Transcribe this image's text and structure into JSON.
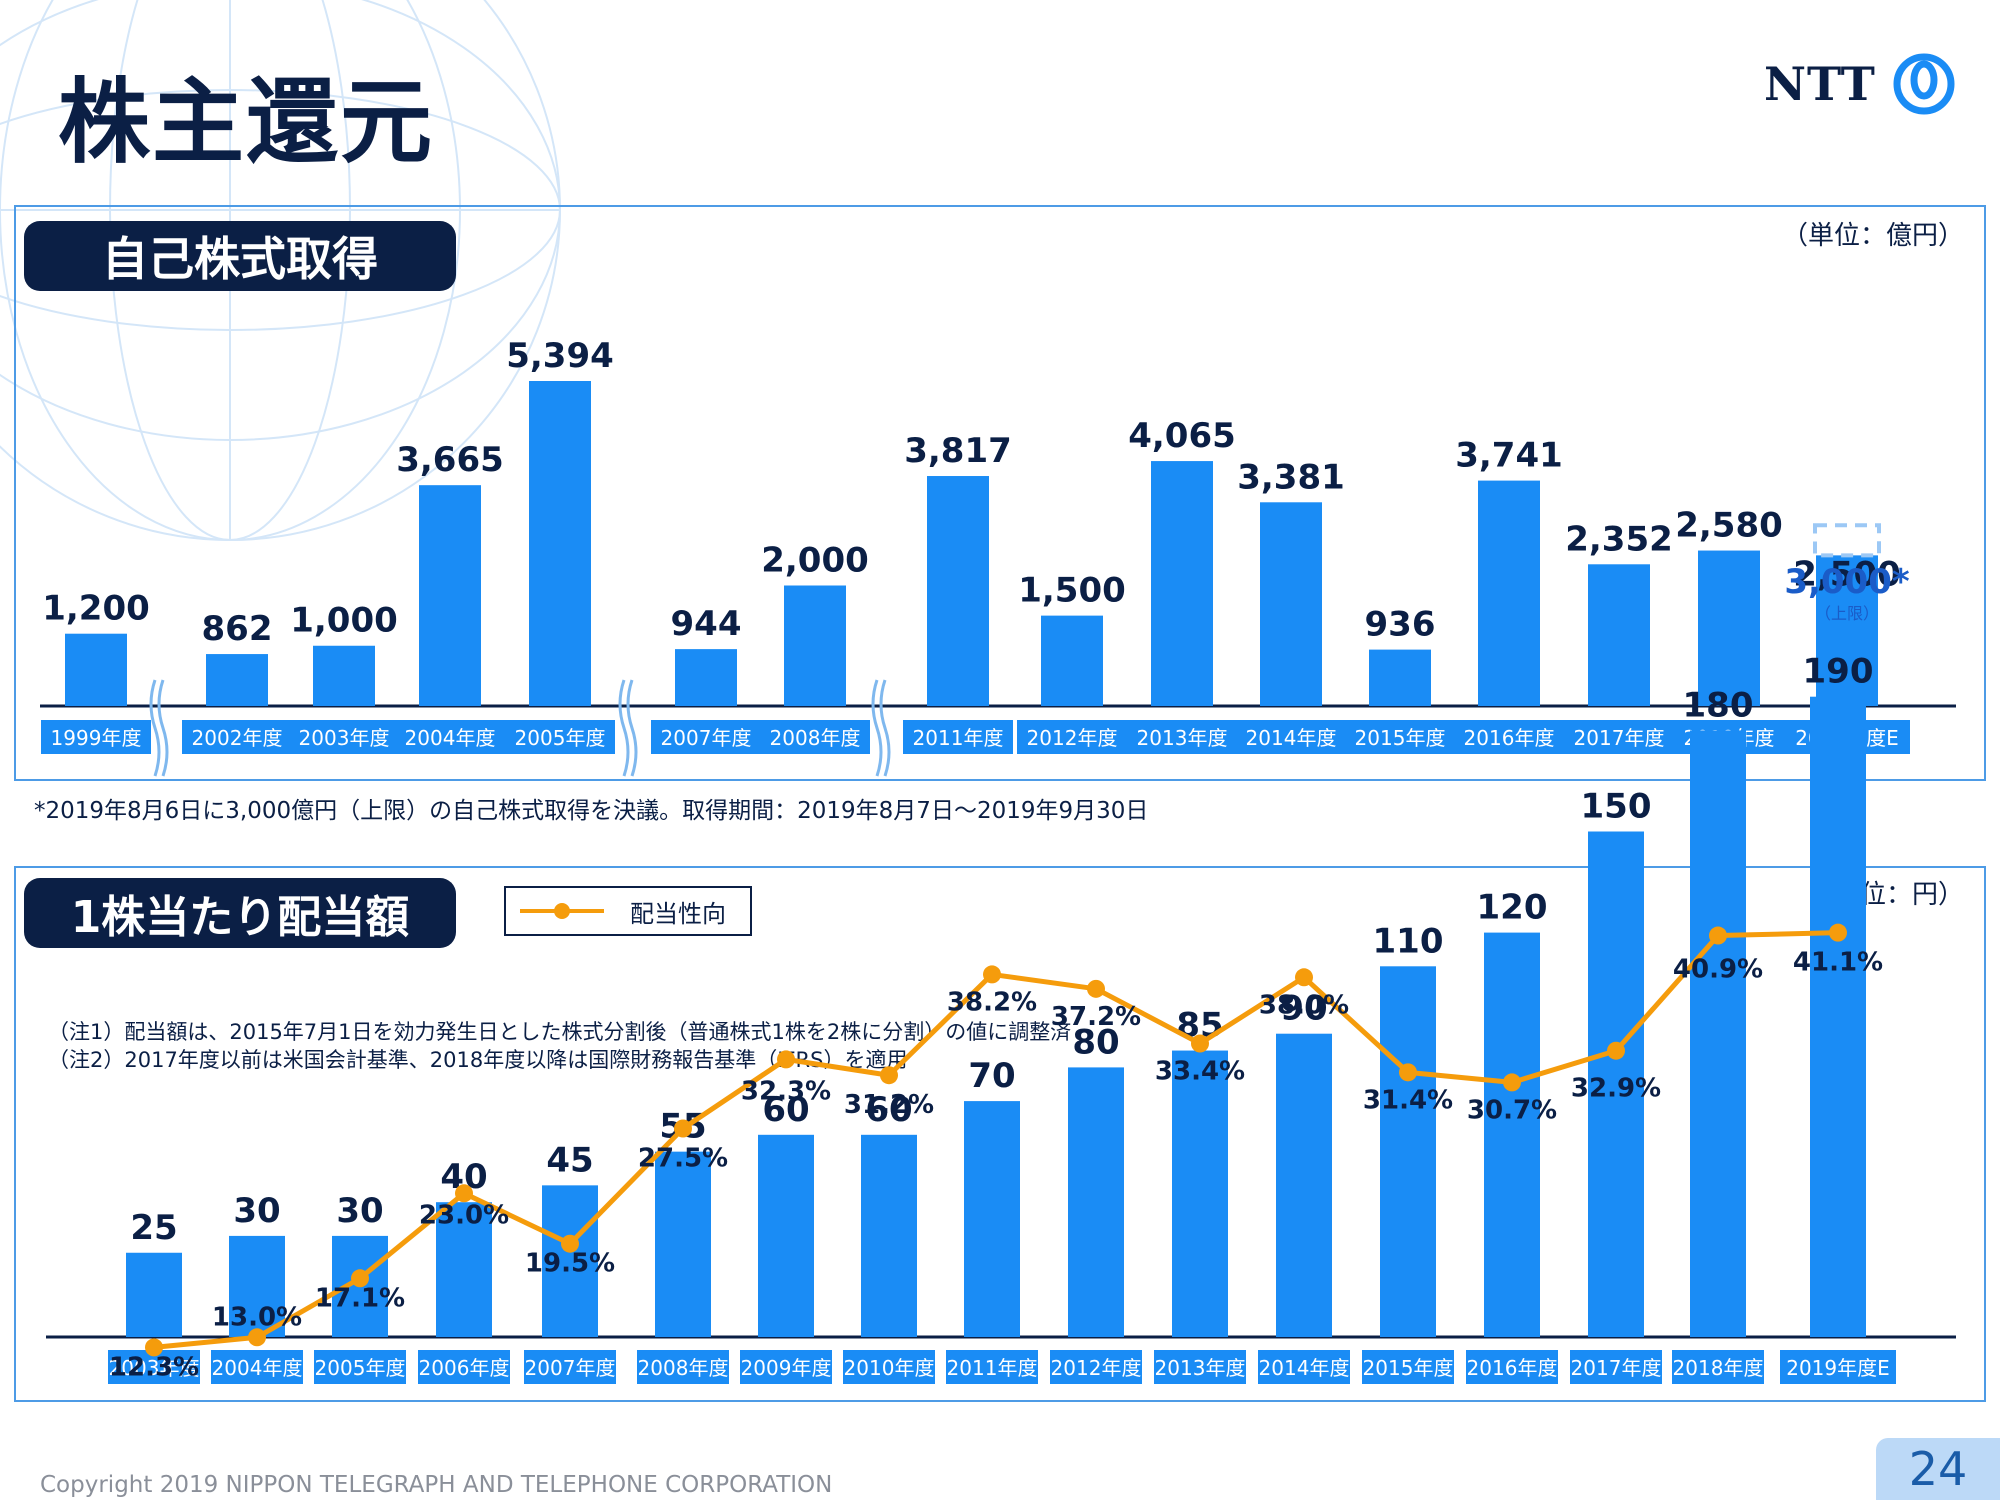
{
  "page": {
    "title": "株主還元",
    "logo_text": "NTT",
    "copyright": "Copyright 2019 NIPPON TELEGRAPH AND TELEPHONE CORPORATION",
    "page_number": "24"
  },
  "buyback": {
    "section_title": "自己株式取得",
    "unit": "（単位：億円）",
    "footnote": "*2019年8月6日に3,000億円（上限）の自己株式取得を決議。取得期間：2019年8月7日～2019年9月30日"
  },
  "dividend": {
    "section_title": "1株当たり配当額",
    "unit": "（単位：円）",
    "legend_label": "配当性向",
    "note1": "（注1）配当額は、2015年7月1日を効力発生日とした株式分割後（普通株式1株を2株に分割）の値に調整済",
    "note2": "（注2）2017年度以前は米国会計基準、2018年度以降は国際財務報告基準（IFRS）を適用"
  },
  "colors": {
    "bar": "#1a8cf5",
    "line": "#f59c0c",
    "navy": "#0b1f45",
    "highlight": "#1a5cc8",
    "dash": "#9cc8f5"
  },
  "chart_data": [
    {
      "type": "bar",
      "title": "自己株式取得",
      "unit": "（単位：億円）",
      "categories": [
        "1999年度",
        "2002年度",
        "2003年度",
        "2004年度",
        "2005年度",
        "2007年度",
        "2008年度",
        "2011年度",
        "2012年度",
        "2013年度",
        "2014年度",
        "2015年度",
        "2016年度",
        "2017年度",
        "2018年度",
        "2019年度E"
      ],
      "values": [
        1200,
        862,
        1000,
        3665,
        5394,
        944,
        2000,
        3817,
        1500,
        4065,
        3381,
        936,
        3741,
        2352,
        2580,
        2500
      ],
      "value_labels": [
        "1,200",
        "862",
        "1,000",
        "3,665",
        "5,394",
        "944",
        "2,000",
        "3,817",
        "1,500",
        "4,065",
        "3,381",
        "936",
        "3,741",
        "2,352",
        "2,580",
        "2,500"
      ],
      "axis_breaks_after": [
        "1999年度",
        "2005年度",
        "2008年度"
      ],
      "forecast_upper": {
        "category": "2019年度E",
        "value": 3000,
        "label": "3,000*",
        "sublabel": "（上限）"
      },
      "ylim": [
        0,
        5600
      ],
      "grid": false
    },
    {
      "type": "bar",
      "title": "1株当たり配当額",
      "unit": "（単位：円）",
      "categories": [
        "2003年度",
        "2004年度",
        "2005年度",
        "2006年度",
        "2007年度",
        "2008年度",
        "2009年度",
        "2010年度",
        "2011年度",
        "2012年度",
        "2013年度",
        "2014年度",
        "2015年度",
        "2016年度",
        "2017年度",
        "2018年度",
        "2019年度E"
      ],
      "series": [
        {
          "values": [
            25,
            30,
            30,
            40,
            45,
            55,
            60,
            60,
            70,
            80,
            85,
            90,
            110,
            120,
            150,
            180,
            190
          ]
        },
        {
          "name": "配当性向",
          "type": "line",
          "values": [
            12.3,
            13.0,
            17.1,
            23.0,
            19.5,
            27.5,
            32.3,
            31.2,
            38.2,
            37.2,
            33.4,
            38.0,
            31.4,
            30.7,
            32.9,
            40.9,
            41.1
          ],
          "labels": [
            "12.3%",
            "13.0%",
            "17.1%",
            "23.0%",
            "19.5%",
            "27.5%",
            "32.3%",
            "31.2%",
            "38.2%",
            "37.2%",
            "33.4%",
            "38.0%",
            "31.4%",
            "30.7%",
            "32.9%",
            "40.9%",
            "41.1%"
          ]
        }
      ],
      "ylim": [
        0,
        200
      ],
      "grid": false,
      "legend": "top-left"
    }
  ]
}
